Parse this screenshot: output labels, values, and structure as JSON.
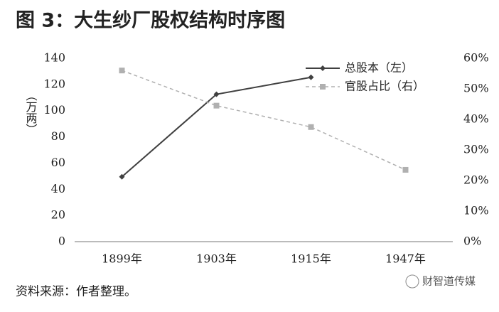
{
  "chart_data": {
    "type": "line",
    "title": "图 3：大生纱厂股权结构时序图",
    "y_label": "（万两）",
    "categories": [
      "1899年",
      "1903年",
      "1915年",
      "1947年"
    ],
    "series": [
      {
        "name": "总股本（左）",
        "color": "#404040",
        "values": [
          49.5,
          112.5,
          125.5,
          null
        ]
      },
      {
        "name": "官股占比（右）",
        "color": "#b0b0b0",
        "axis": "y2",
        "values": [
          56,
          44.5,
          37.5,
          23.5
        ]
      }
    ],
    "ylim": [
      0,
      140
    ],
    "yticks": [
      0,
      20,
      40,
      60,
      80,
      100,
      120,
      140
    ],
    "y2lim": [
      0,
      60
    ],
    "y2ticks": [
      {
        "value": 0,
        "label": "0%"
      },
      {
        "value": 10,
        "label": "10%"
      },
      {
        "value": 20,
        "label": "20%"
      },
      {
        "value": 30,
        "label": "30%"
      },
      {
        "value": 40,
        "label": "40%"
      },
      {
        "value": 50,
        "label": "50%"
      },
      {
        "value": 60,
        "label": "60%"
      }
    ],
    "source": "资料来源：作者整理。",
    "watermark": "财智道传媒"
  }
}
